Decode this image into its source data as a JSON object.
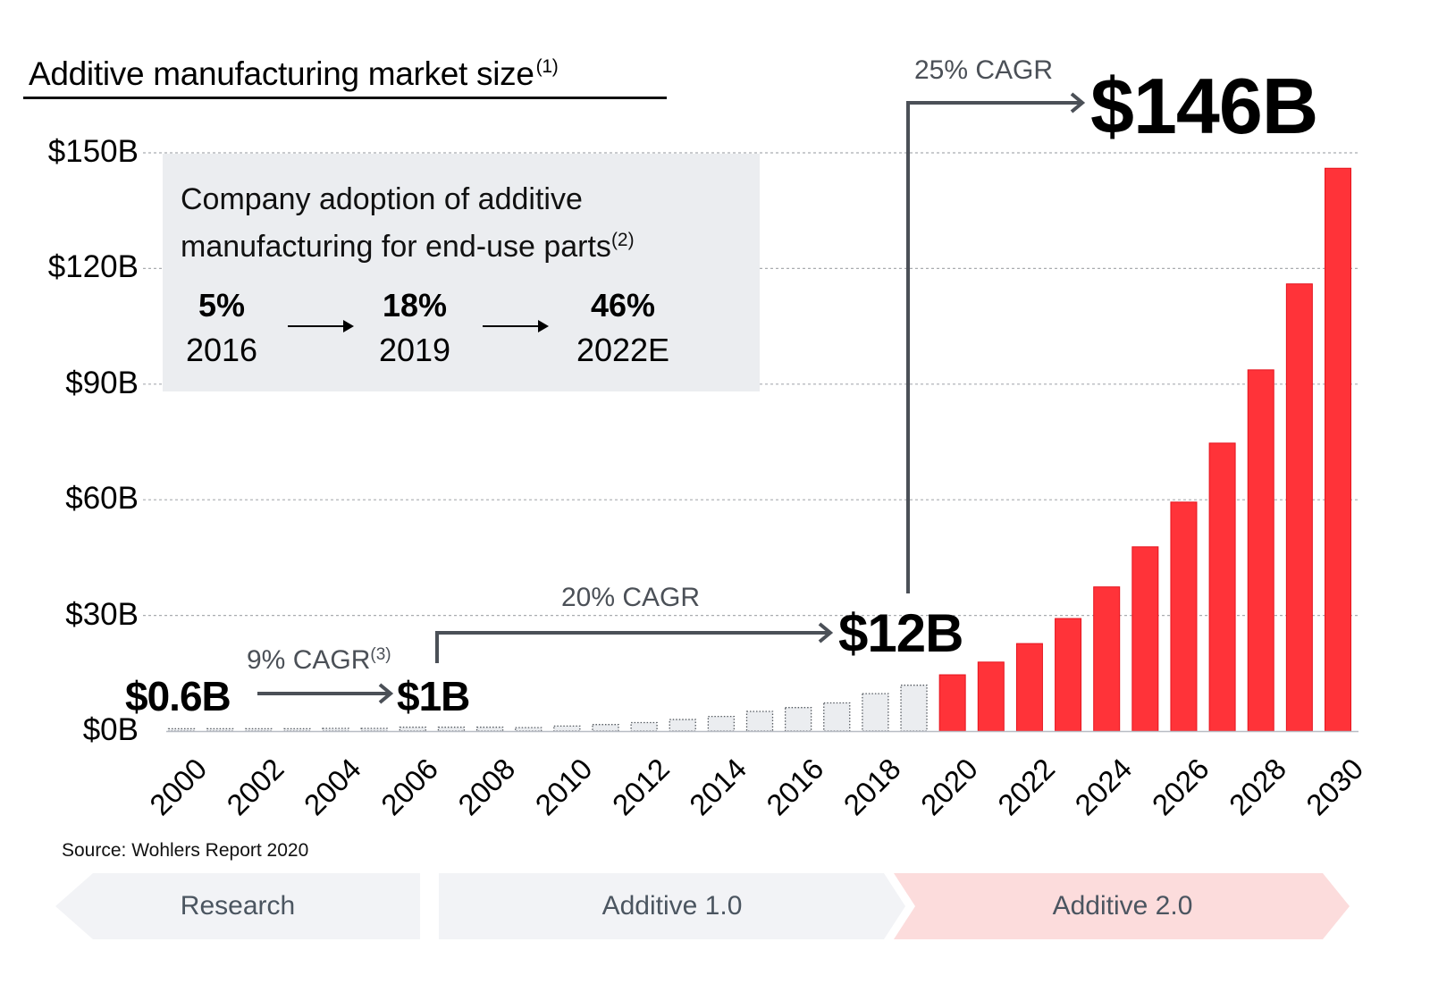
{
  "title": "Additive manufacturing market size",
  "title_footnote": "(1)",
  "inset": {
    "title_line1": "Company adoption of additive",
    "title_line2": "manufacturing for end-use parts",
    "title_footnote": "(2)",
    "stats": [
      {
        "pct": "5%",
        "year": "2016"
      },
      {
        "pct": "18%",
        "year": "2019"
      },
      {
        "pct": "46%",
        "year": "2022E"
      }
    ]
  },
  "annotations": {
    "start_value": "$0.6B",
    "cagr1": "9% CAGR",
    "cagr1_footnote": "(3)",
    "value_2006": "$1B",
    "cagr2": "20% CAGR",
    "value_2019": "$12B",
    "cagr3": "25% CAGR",
    "value_2030": "$146B"
  },
  "source": "Source: Wohlers Report 2020",
  "phases": [
    {
      "label": "Research",
      "color": "#f2f3f6"
    },
    {
      "label": "Additive 1.0",
      "color": "#f2f3f6"
    },
    {
      "label": "Additive 2.0",
      "color": "#fcdcdc"
    }
  ],
  "colors": {
    "historical_fill": "#ebedf0",
    "historical_stroke": "#555a60",
    "forecast_fill": "#ff3339",
    "forecast_stroke": "#e6141e",
    "arrow": "#4b5057",
    "grid": "#a9acb0"
  },
  "chart_data": {
    "type": "bar",
    "title": "Additive manufacturing market size",
    "xlabel": "",
    "ylabel": "",
    "ylim": [
      0,
      150
    ],
    "yticks": [
      0,
      30,
      60,
      90,
      120,
      150
    ],
    "ytick_labels": [
      "$0B",
      "$30B",
      "$60B",
      "$90B",
      "$120B",
      "$150B"
    ],
    "xtick_labels": [
      "2000",
      "2002",
      "2004",
      "2006",
      "2008",
      "2010",
      "2012",
      "2014",
      "2016",
      "2018",
      "2020",
      "2022",
      "2024",
      "2026",
      "2028",
      "2030"
    ],
    "grid": true,
    "categories": [
      "2000",
      "2001",
      "2002",
      "2003",
      "2004",
      "2005",
      "2006",
      "2007",
      "2008",
      "2009",
      "2010",
      "2011",
      "2012",
      "2013",
      "2014",
      "2015",
      "2016",
      "2017",
      "2018",
      "2019",
      "2020",
      "2021",
      "2022",
      "2023",
      "2024",
      "2025",
      "2026",
      "2027",
      "2028",
      "2029",
      "2030"
    ],
    "series": [
      {
        "name": "Historical",
        "style": "dotted-gray",
        "values": [
          0.6,
          0.6,
          0.6,
          0.6,
          0.7,
          0.7,
          1.0,
          1.0,
          1.0,
          0.9,
          1.3,
          1.7,
          2.2,
          3.0,
          3.8,
          5.1,
          6.1,
          7.3,
          9.7,
          11.9,
          null,
          null,
          null,
          null,
          null,
          null,
          null,
          null,
          null,
          null,
          null
        ]
      },
      {
        "name": "Forecast",
        "style": "solid-red",
        "values": [
          null,
          null,
          null,
          null,
          null,
          null,
          null,
          null,
          null,
          null,
          null,
          null,
          null,
          null,
          null,
          null,
          null,
          null,
          null,
          null,
          14.6,
          17.9,
          22.7,
          29.2,
          37.4,
          47.8,
          59.4,
          74.7,
          93.7,
          116.0,
          146.0
        ]
      }
    ]
  }
}
